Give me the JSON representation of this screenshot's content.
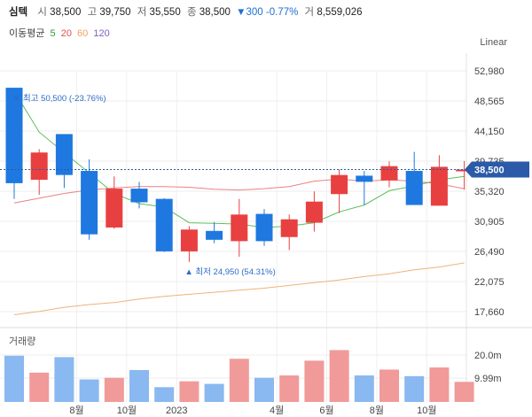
{
  "header": {
    "name": "심텍",
    "open_label": "시",
    "open": "38,500",
    "high_label": "고",
    "high": "39,750",
    "low_label": "저",
    "low": "35,550",
    "close_label": "종",
    "close": "38,500",
    "change": "▼300 -0.77%",
    "volume_label": "거",
    "volume": "8,559,026"
  },
  "ma_legend": {
    "label": "이동평균",
    "items": [
      {
        "text": "5",
        "color": "#2ca02c"
      },
      {
        "text": "20",
        "color": "#e05050"
      },
      {
        "text": "60",
        "color": "#f0a060"
      },
      {
        "text": "120",
        "color": "#8060c0"
      }
    ]
  },
  "scale_label": "Linear",
  "colors": {
    "up": "#e84040",
    "down": "#1e78e0",
    "vol_up": "#f09a9a",
    "vol_down": "#8ab8f0"
  },
  "chart_data": {
    "type": "candlestick",
    "y_ticks": [
      "52,980",
      "48,565",
      "44,150",
      "39,735",
      "35,320",
      "30,905",
      "26,490",
      "22,075",
      "17,660"
    ],
    "y_tick_values": [
      52980,
      48565,
      44150,
      39735,
      35320,
      30905,
      26490,
      22075,
      17660
    ],
    "x_ticks": [
      "8월",
      "10월",
      "2023",
      "4월",
      "6월",
      "8월",
      "10월"
    ],
    "x_tick_index": [
      2.5,
      4.5,
      6.5,
      10.5,
      12.5,
      14.5,
      16.5
    ],
    "candles": [
      {
        "o": 50500,
        "h": 50500,
        "l": 34200,
        "c": 36500
      },
      {
        "o": 37000,
        "h": 41500,
        "l": 34800,
        "c": 41000
      },
      {
        "o": 43700,
        "h": 43700,
        "l": 35800,
        "c": 37700
      },
      {
        "o": 38300,
        "h": 40000,
        "l": 28200,
        "c": 29000
      },
      {
        "o": 30000,
        "h": 37500,
        "l": 29800,
        "c": 35700
      },
      {
        "o": 35700,
        "h": 36700,
        "l": 32800,
        "c": 33700
      },
      {
        "o": 34200,
        "h": 34300,
        "l": 26400,
        "c": 26500
      },
      {
        "o": 26500,
        "h": 30200,
        "l": 24950,
        "c": 29700
      },
      {
        "o": 29500,
        "h": 30800,
        "l": 27700,
        "c": 28200
      },
      {
        "o": 28000,
        "h": 34200,
        "l": 25700,
        "c": 31900
      },
      {
        "o": 32000,
        "h": 32700,
        "l": 27300,
        "c": 28000
      },
      {
        "o": 28600,
        "h": 31900,
        "l": 26700,
        "c": 31200
      },
      {
        "o": 30700,
        "h": 35300,
        "l": 29400,
        "c": 33800
      },
      {
        "o": 34900,
        "h": 38500,
        "l": 32100,
        "c": 37700
      },
      {
        "o": 37600,
        "h": 38300,
        "l": 33300,
        "c": 36700
      },
      {
        "o": 36900,
        "h": 39700,
        "l": 35900,
        "c": 39000
      },
      {
        "o": 38300,
        "h": 41100,
        "l": 33300,
        "c": 33300
      },
      {
        "o": 33200,
        "h": 40600,
        "l": 33200,
        "c": 38900
      },
      {
        "o": 38500,
        "h": 39750,
        "l": 35550,
        "c": 38500
      }
    ],
    "current_price": "38,500",
    "current_price_value": 38500,
    "annotations": {
      "max_text": "▼ 최고 50,500 (-23.76%)",
      "min_text": "▲ 최저 24,950 (54.31%)"
    },
    "ma5": [
      50000,
      44000,
      41000,
      38000,
      35000,
      33500,
      33000,
      30700,
      30600,
      30500,
      30000,
      30200,
      30700,
      32300,
      33300,
      35400,
      36100,
      37000,
      37500
    ],
    "ma20": [
      33600,
      34300,
      35000,
      35500,
      35800,
      36000,
      36000,
      35900,
      35600,
      35500,
      35700,
      36000,
      36800,
      37100,
      36800,
      37000,
      36800,
      36400,
      35700
    ],
    "ma60": [
      17200,
      17700,
      18300,
      18700,
      19000,
      19500,
      19900,
      20200,
      20500,
      20800,
      21100,
      21500,
      21900,
      22300,
      22800,
      23200,
      23800,
      24200,
      24800
    ],
    "volume": {
      "title": "거래량",
      "ticks": [
        "20.0m",
        "9.99m"
      ],
      "tick_values": [
        20000000,
        9990000
      ],
      "values": [
        19700000,
        12500000,
        19100000,
        9600000,
        10300000,
        13600000,
        6300000,
        8800000,
        7700000,
        18400000,
        10300000,
        11300000,
        17600000,
        22100000,
        11300000,
        13800000,
        11000000,
        14700000,
        8559026
      ]
    }
  }
}
